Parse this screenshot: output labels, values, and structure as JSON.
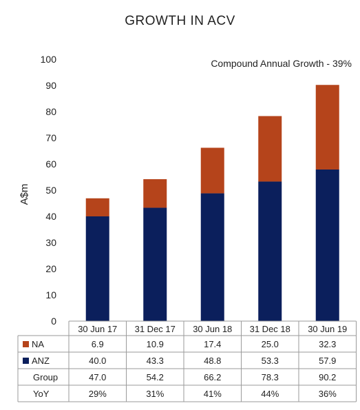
{
  "title": "GROWTH IN ACV",
  "chart_data": {
    "type": "bar",
    "stacked": true,
    "title": "GROWTH IN ACV",
    "annotation": "Compound Annual Growth - 39%",
    "ylabel": "A$m",
    "xlabel": "",
    "ylim": [
      0,
      100
    ],
    "yticks": [
      0,
      10,
      20,
      30,
      40,
      50,
      60,
      70,
      80,
      90,
      100
    ],
    "grid": false,
    "categories": [
      "30 Jun 17",
      "31 Dec 17",
      "30 Jun 18",
      "31 Dec 18",
      "30 Jun 19"
    ],
    "series": [
      {
        "name": "ANZ",
        "color": "#0b1f5c",
        "values": [
          40.0,
          43.3,
          48.8,
          53.3,
          57.9
        ],
        "labels": [
          "40.0",
          "43.3",
          "48.8",
          "53.3",
          "57.9"
        ]
      },
      {
        "name": "NA",
        "color": "#b5441b",
        "values": [
          6.9,
          10.9,
          17.4,
          25.0,
          32.3
        ],
        "labels": [
          "6.9",
          "10.9",
          "17.4",
          "25.0",
          "32.3"
        ]
      }
    ],
    "table": {
      "rows": [
        {
          "label": "NA",
          "swatch": "#b5441b",
          "cells": [
            "6.9",
            "10.9",
            "17.4",
            "25.0",
            "32.3"
          ]
        },
        {
          "label": "ANZ",
          "swatch": "#0b1f5c",
          "cells": [
            "40.0",
            "43.3",
            "48.8",
            "53.3",
            "57.9"
          ]
        },
        {
          "label": "Group",
          "swatch": null,
          "cells": [
            "47.0",
            "54.2",
            "66.2",
            "78.3",
            "90.2"
          ]
        },
        {
          "label": "YoY",
          "swatch": null,
          "cells": [
            "29%",
            "31%",
            "41%",
            "44%",
            "36%"
          ]
        }
      ]
    }
  }
}
